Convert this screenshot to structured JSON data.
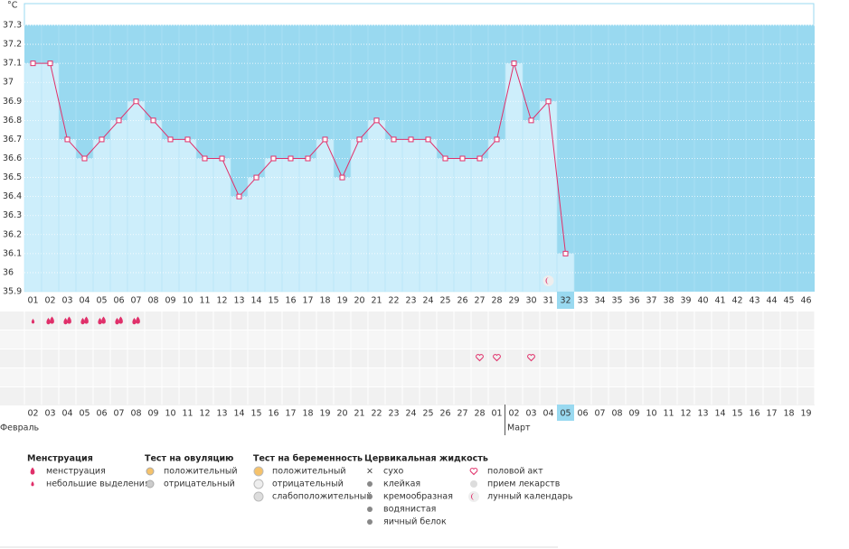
{
  "chart_data": {
    "type": "line",
    "y_unit": "°C",
    "categories": [
      "01",
      "02",
      "03",
      "04",
      "05",
      "06",
      "07",
      "08",
      "09",
      "10",
      "11",
      "12",
      "13",
      "14",
      "15",
      "16",
      "17",
      "18",
      "19",
      "20",
      "21",
      "22",
      "23",
      "24",
      "25",
      "26",
      "27",
      "28",
      "29",
      "30",
      "31",
      "32",
      "33",
      "34",
      "35",
      "36",
      "37",
      "38",
      "39",
      "40",
      "41",
      "42",
      "43",
      "44",
      "45",
      "46"
    ],
    "series": [
      {
        "name": "temperature",
        "color": "#e0306a",
        "values": [
          37.1,
          37.1,
          36.7,
          36.6,
          36.7,
          36.8,
          36.9,
          36.8,
          36.7,
          36.7,
          36.6,
          36.6,
          36.4,
          36.5,
          36.6,
          36.6,
          36.6,
          36.7,
          36.5,
          36.7,
          36.8,
          36.7,
          36.7,
          36.7,
          36.6,
          36.6,
          36.6,
          36.7,
          37.1,
          36.8,
          36.9,
          36.1,
          null,
          null,
          null,
          null,
          null,
          null,
          null,
          null,
          null,
          null,
          null,
          null,
          null,
          null
        ]
      }
    ],
    "ylim": [
      35.9,
      37.3
    ],
    "yticks": [
      35.9,
      36,
      36.1,
      36.2,
      36.3,
      36.4,
      36.5,
      36.6,
      36.7,
      36.8,
      36.9,
      37,
      37.1,
      37.2,
      37.3
    ],
    "grid": true,
    "current_day": 32,
    "dates": [
      "02",
      "03",
      "04",
      "05",
      "06",
      "07",
      "08",
      "09",
      "10",
      "11",
      "12",
      "13",
      "14",
      "15",
      "16",
      "17",
      "18",
      "19",
      "20",
      "21",
      "22",
      "23",
      "24",
      "25",
      "26",
      "27",
      "28",
      "01",
      "02",
      "03",
      "04",
      "05",
      "06",
      "07",
      "08",
      "09",
      "10",
      "11",
      "12",
      "13",
      "14",
      "15",
      "16",
      "17",
      "18",
      "19"
    ],
    "weekend_days": [
      1,
      7,
      8,
      14,
      15,
      21,
      22,
      28,
      29,
      35,
      36,
      42,
      43
    ],
    "weekend_color": "#e0245e",
    "months": [
      {
        "name": "Февраль",
        "start_day": 1
      },
      {
        "name": "Март",
        "start_day": 28
      }
    ],
    "symbols": {
      "menstruation_small": [
        1
      ],
      "menstruation": [
        2,
        3,
        4,
        5,
        6,
        7
      ],
      "intercourse": [
        27,
        28,
        30
      ],
      "lunar": [
        31
      ]
    },
    "legend": [
      {
        "title": "Менструация",
        "items": [
          "менструация",
          "небольшие выделения"
        ]
      },
      {
        "title": "Тест на овуляцию",
        "items": [
          "положительный",
          "отрицательный"
        ]
      },
      {
        "title": "Тест на беременность",
        "items": [
          "положительный",
          "отрицательный",
          "слабоположительный"
        ]
      },
      {
        "title": "Цервикальная жидкость",
        "items": [
          "сухо",
          "клейкая",
          "кремообразная",
          "водянистая",
          "яичный белок"
        ]
      },
      {
        "items": [
          "половой акт",
          "прием лекарств",
          "лунный календарь"
        ]
      }
    ]
  }
}
